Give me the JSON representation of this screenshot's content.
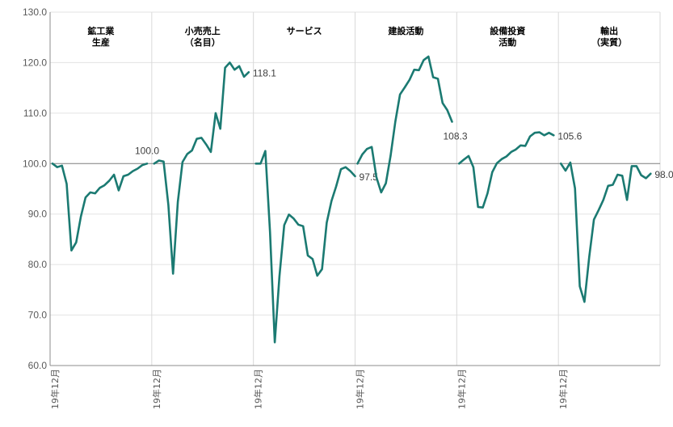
{
  "chart_data": {
    "type": "line",
    "title": "",
    "xlabel": "",
    "ylabel": "",
    "ylim": [
      60,
      130
    ],
    "yticks": [
      "60.0",
      "70.0",
      "80.0",
      "90.0",
      "100.0",
      "110.0",
      "120.0",
      "130.0"
    ],
    "reference_line": 100,
    "grid": true,
    "legend": "none",
    "line_color": "#1B7A72",
    "panels": [
      {
        "title_lines": [
          "鉱工業",
          "生産"
        ],
        "x_start_label": "19年12月",
        "end_label": "100.0",
        "values": [
          100.0,
          99.3,
          99.6,
          96.0,
          82.8,
          84.4,
          89.5,
          93.3,
          94.3,
          94.1,
          95.2,
          95.7,
          96.6,
          97.8,
          94.7,
          97.5,
          97.8,
          98.5,
          99.0,
          99.7,
          100.0
        ]
      },
      {
        "title_lines": [
          "小売売上",
          "（名目）"
        ],
        "x_start_label": "19年12月",
        "end_label": "118.1",
        "values": [
          100.0,
          100.6,
          100.4,
          91.8,
          78.2,
          92.4,
          100.3,
          101.9,
          102.6,
          104.9,
          105.1,
          103.8,
          102.3,
          110.0,
          106.9,
          119.0,
          120.0,
          118.6,
          119.3,
          117.2,
          118.1
        ]
      },
      {
        "title_lines": [
          "サービス"
        ],
        "x_start_label": "19年12月",
        "end_label": "97.5",
        "values": [
          100.0,
          100.0,
          102.5,
          86.5,
          64.6,
          77.7,
          87.8,
          89.9,
          89.1,
          87.9,
          87.6,
          81.8,
          81.1,
          77.8,
          79.1,
          88.3,
          92.6,
          95.5,
          98.9,
          99.3,
          98.5,
          97.5
        ]
      },
      {
        "title_lines": [
          "建設活動"
        ],
        "x_start_label": "19年12月",
        "end_label": "108.3",
        "values": [
          100.0,
          101.8,
          102.9,
          103.3,
          97.3,
          94.3,
          96.1,
          101.5,
          108.3,
          113.7,
          115.1,
          116.6,
          118.6,
          118.5,
          120.5,
          121.2,
          117.1,
          116.8,
          112.0,
          110.6,
          108.3
        ]
      },
      {
        "title_lines": [
          "設備投資",
          "活動"
        ],
        "x_start_label": "19年12月",
        "end_label": "105.6",
        "values": [
          100.0,
          100.8,
          101.5,
          99.3,
          91.4,
          91.3,
          94.1,
          98.3,
          100.1,
          100.9,
          101.4,
          102.3,
          102.8,
          103.6,
          103.5,
          105.4,
          106.1,
          106.2,
          105.6,
          106.1,
          105.6
        ]
      },
      {
        "title_lines": [
          "輸出",
          "（実質）"
        ],
        "x_start_label": "19年12月",
        "end_label": "98.0",
        "values": [
          100.0,
          98.6,
          100.2,
          95.1,
          75.7,
          72.6,
          81.5,
          88.9,
          90.8,
          92.8,
          95.6,
          95.8,
          97.8,
          97.6,
          92.8,
          99.5,
          99.5,
          97.7,
          97.1,
          98.0
        ]
      }
    ]
  }
}
